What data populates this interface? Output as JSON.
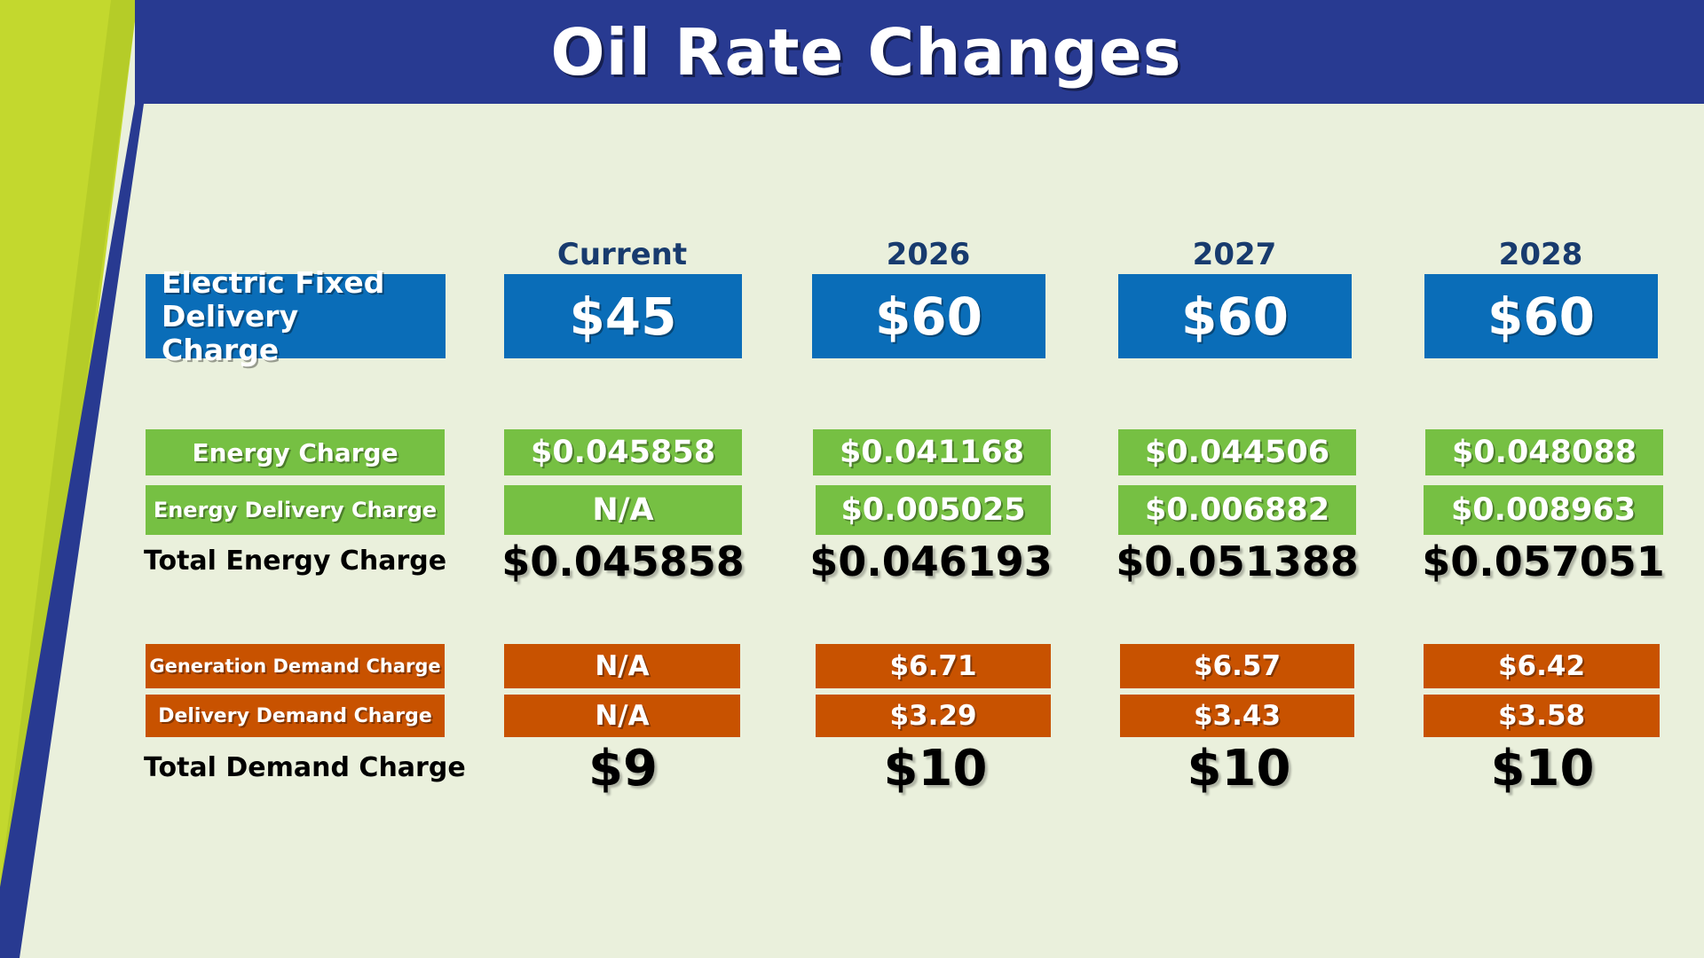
{
  "title": "Oil Rate Changes",
  "colors": {
    "navy": "#283a91",
    "lime": "#c3d82e",
    "blue_box": "#0a6db8",
    "green_box": "#76c043",
    "orange_box": "#c85200",
    "background": "#eaf0dc",
    "header_text": "#183b6e"
  },
  "columns": [
    "Current",
    "2026",
    "2027",
    "2028"
  ],
  "rows": {
    "fixed": {
      "label": "Electric Fixed Delivery Charge",
      "values": [
        "$45",
        "$60",
        "$60",
        "$60"
      ]
    },
    "energy_charge": {
      "label": "Energy Charge",
      "values": [
        "$0.045858",
        "$0.041168",
        "$0.044506",
        "$0.048088"
      ]
    },
    "energy_delivery": {
      "label": "Energy Delivery Charge",
      "values": [
        "N/A",
        "$0.005025",
        "$0.006882",
        "$0.008963"
      ]
    },
    "total_energy": {
      "label": "Total Energy Charge",
      "values": [
        "$0.045858",
        "$0.046193",
        "$0.051388",
        "$0.057051"
      ]
    },
    "generation_demand": {
      "label": "Generation Demand Charge",
      "values": [
        "N/A",
        "$6.71",
        "$6.57",
        "$6.42"
      ]
    },
    "delivery_demand": {
      "label": "Delivery Demand Charge",
      "values": [
        "N/A",
        "$3.29",
        "$3.43",
        "$3.58"
      ]
    },
    "total_demand": {
      "label": "Total Demand Charge",
      "values": [
        "$9",
        "$10",
        "$10",
        "$10"
      ]
    }
  }
}
